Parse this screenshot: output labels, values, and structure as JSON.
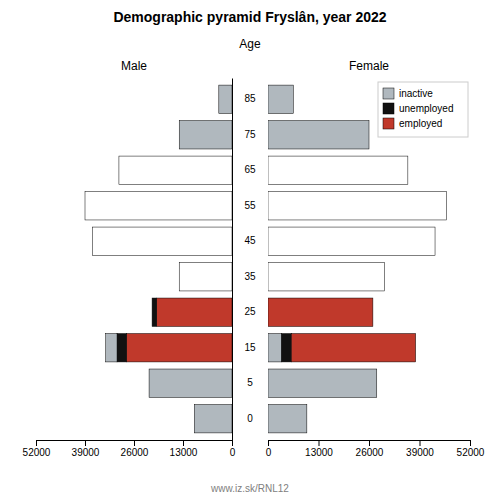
{
  "chart_data": [
    {
      "type": "bar",
      "orientation": "horizontal",
      "stacked": true,
      "title": "Demographic pyramid Fryslân, year 2022",
      "subtitle": "Male",
      "ylabel": "Age",
      "annotations": [
        "www.iz.sk/RNL12"
      ],
      "categories": [
        "85",
        "75",
        "65",
        "55",
        "45",
        "35",
        "25",
        "15",
        "5",
        "0"
      ],
      "series": [
        {
          "name": "employed",
          "color": "#c0392b",
          "colors": [
            "#ffffff",
            "#ffffff",
            "#ffffff",
            "#ffffff",
            "#ffffff",
            "#ffffff",
            "#c0392b",
            "#c0392b",
            "#ffffff",
            "#ffffff"
          ],
          "values": [
            0,
            0,
            30000,
            39000,
            37000,
            14000,
            20000,
            28000,
            0,
            0
          ]
        },
        {
          "name": "unemployed",
          "color": "#111111",
          "values": [
            0,
            0,
            0,
            0,
            0,
            0,
            1200,
            2500,
            0,
            0
          ]
        },
        {
          "name": "inactive",
          "color": "#b0b8be",
          "values": [
            3500,
            14000,
            0,
            0,
            0,
            0,
            0,
            3000,
            22000,
            10000
          ]
        }
      ],
      "xlim": [
        52000,
        0
      ],
      "xticks": [
        0,
        13000,
        26000,
        39000,
        52000
      ]
    },
    {
      "type": "bar",
      "orientation": "horizontal",
      "stacked": true,
      "subtitle": "Female",
      "tick_labels": "x",
      "legend": "upper right",
      "categories": [
        "85",
        "75",
        "65",
        "55",
        "45",
        "35",
        "25",
        "15",
        "5",
        "0"
      ],
      "series": [
        {
          "name": "inactive",
          "color": "#b0b8be",
          "values": [
            6500,
            26000,
            0,
            0,
            0,
            0,
            0,
            3500,
            28000,
            10000
          ]
        },
        {
          "name": "unemployed",
          "color": "#111111",
          "values": [
            0,
            0,
            0,
            0,
            0,
            0,
            0,
            2500,
            0,
            0
          ]
        },
        {
          "name": "employed",
          "color": "#c0392b",
          "colors": [
            "#ffffff",
            "#ffffff",
            "#ffffff",
            "#ffffff",
            "#ffffff",
            "#ffffff",
            "#c0392b",
            "#c0392b",
            "#ffffff",
            "#ffffff"
          ],
          "values": [
            0,
            0,
            36000,
            46000,
            43000,
            30000,
            27000,
            32000,
            0,
            0
          ]
        }
      ],
      "xlim": [
        0,
        52000
      ],
      "xticks": [
        0,
        13000,
        26000,
        39000,
        52000
      ]
    }
  ]
}
